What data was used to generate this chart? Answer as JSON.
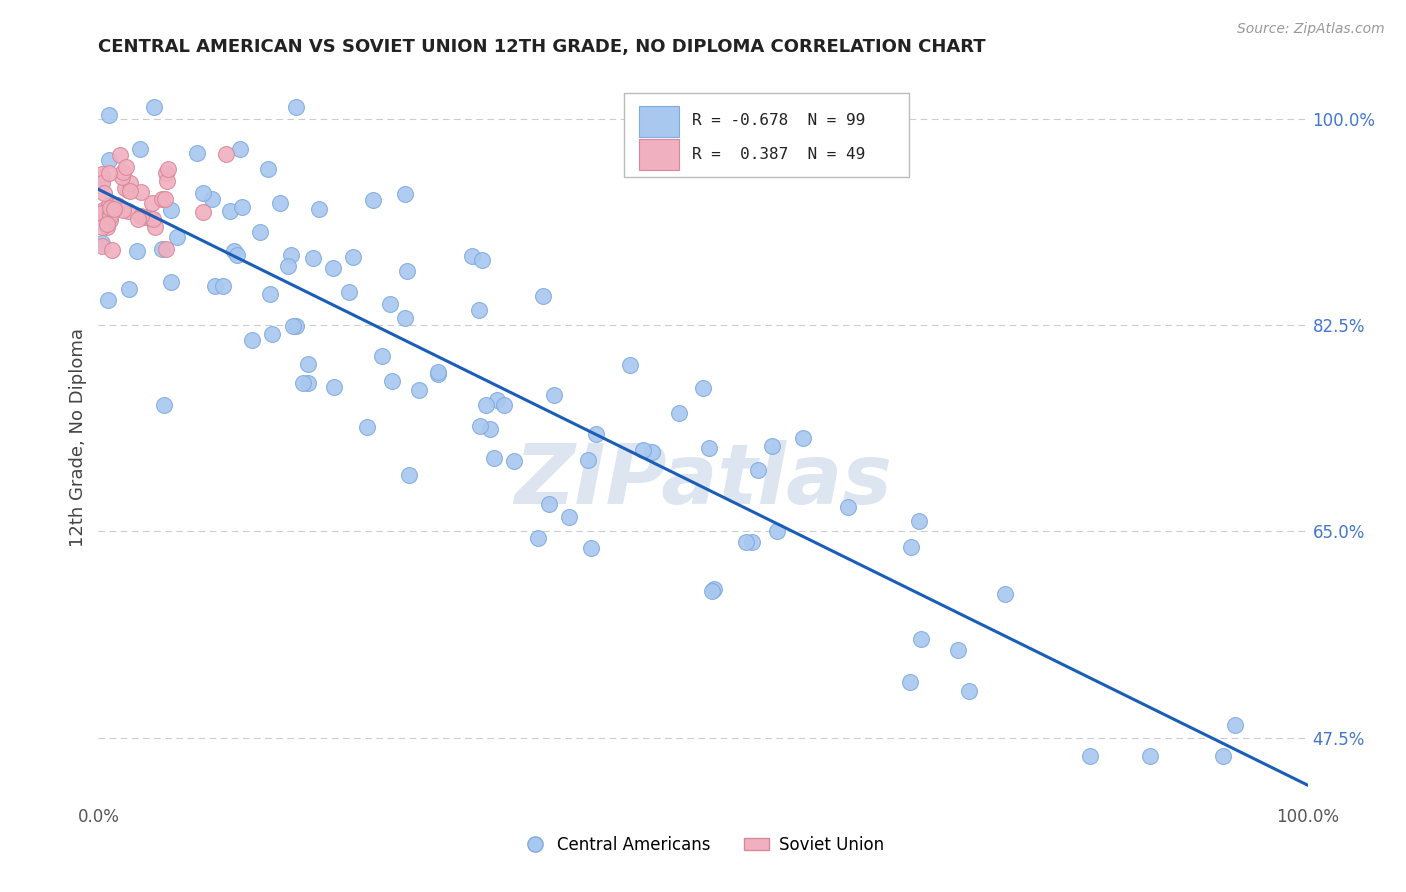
{
  "title": "CENTRAL AMERICAN VS SOVIET UNION 12TH GRADE, NO DIPLOMA CORRELATION CHART",
  "source_text": "Source: ZipAtlas.com",
  "ylabel": "12th Grade, No Diploma",
  "r_blue": -0.678,
  "n_blue": 99,
  "r_pink": 0.387,
  "n_pink": 49,
  "xlim": [
    0.0,
    1.0
  ],
  "ylim": [
    0.42,
    1.04
  ],
  "ytick_positions": [
    0.475,
    0.65,
    0.825,
    1.0
  ],
  "ytick_labels": [
    "47.5%",
    "65.0%",
    "82.5%",
    "100.0%"
  ],
  "grid_color": "#cccccc",
  "background_color": "#ffffff",
  "blue_color": "#a8c8f0",
  "blue_edge_color": "#80aade",
  "pink_color": "#f0b0c0",
  "pink_edge_color": "#d88898",
  "trend_color": "#1a5eb8",
  "watermark_text": "ZIPatlas",
  "watermark_color": "#dde5f0",
  "legend_label_blue": "Central Americans",
  "legend_label_pink": "Soviet Union",
  "trend_x0": 0.0,
  "trend_y0": 0.94,
  "trend_x1": 1.0,
  "trend_y1": 0.435
}
